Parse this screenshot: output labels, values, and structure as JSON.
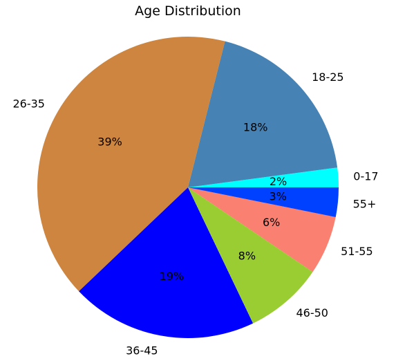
{
  "chart_data": {
    "type": "pie",
    "title": "Age Distribution",
    "categories": [
      "0-17",
      "18-25",
      "26-35",
      "36-45",
      "46-50",
      "51-55",
      "55+"
    ],
    "values": [
      2,
      18,
      39,
      19,
      8,
      6,
      3
    ],
    "percent_labels": [
      "2%",
      "18%",
      "39%",
      "19%",
      "8%",
      "6%",
      "3%"
    ],
    "colors": [
      "#00ffff",
      "#4682b4",
      "#cd853f",
      "#0000ff",
      "#9acd32",
      "#fa8072",
      "#0040ff"
    ],
    "start_angle_deg": 0,
    "direction": "counterclockwise"
  }
}
